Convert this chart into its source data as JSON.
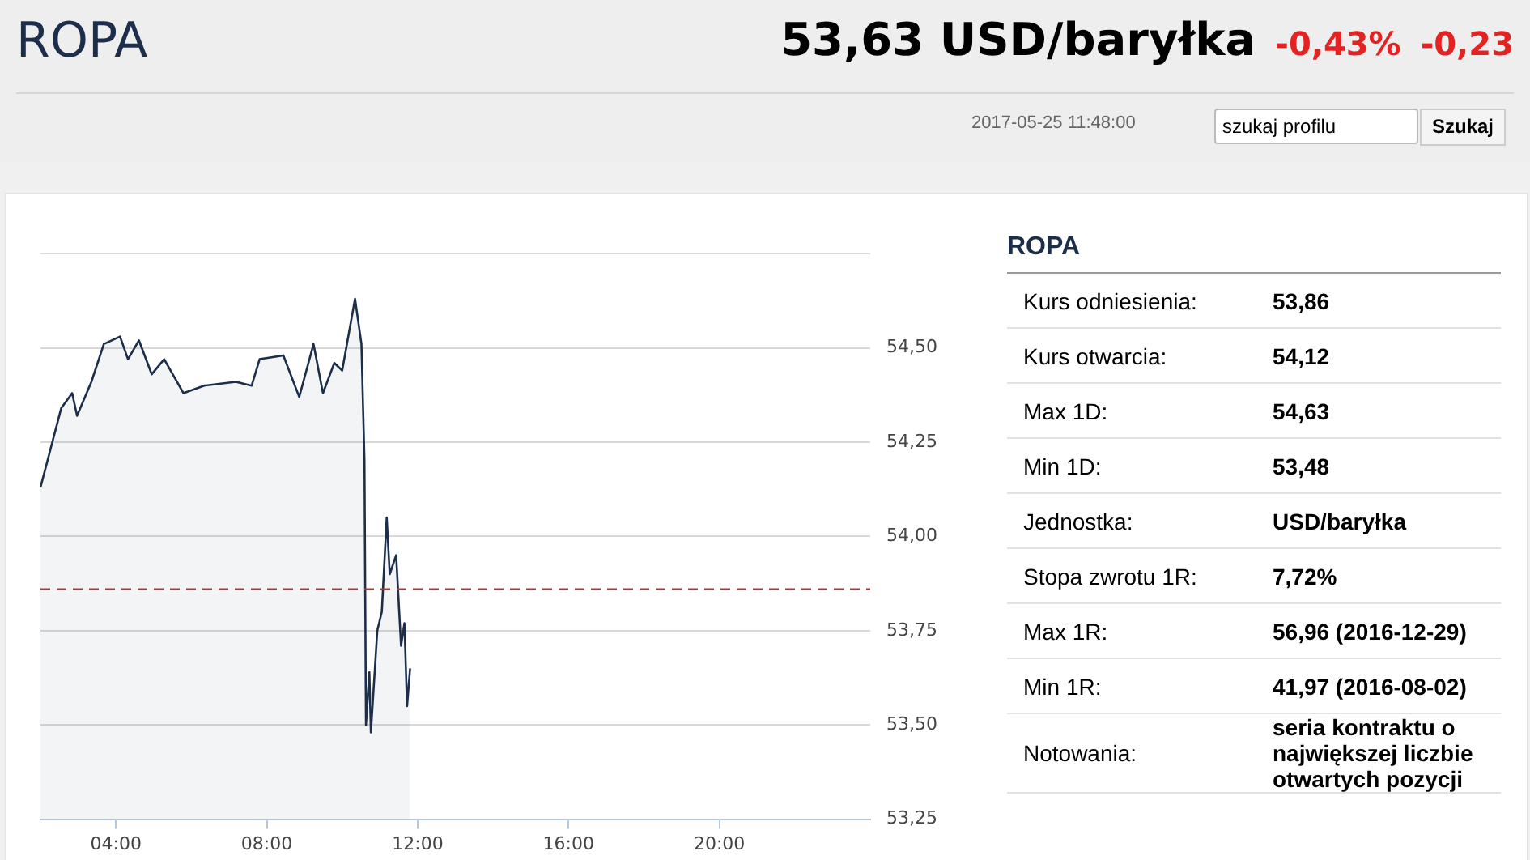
{
  "chart_data": [
    {
      "type": "area",
      "title": "ROPA",
      "subtitle": "53,63 USD/baryłka",
      "annotations": [
        "-0,43%",
        "-0,23",
        "2017-05-25 11:48:00",
        "szukaj profilu",
        "Szukaj"
      ],
      "x": [
        2.0,
        2.21,
        2.34,
        2.55,
        2.84,
        2.97,
        3.35,
        3.68,
        4.11,
        4.32,
        4.61,
        4.95,
        5.28,
        5.79,
        6.34,
        7.18,
        7.6,
        7.81,
        8.44,
        8.86,
        9.24,
        9.49,
        9.79,
        10.0,
        10.34,
        10.51,
        10.59,
        10.63,
        10.72,
        10.76,
        10.93,
        11.05,
        11.18,
        11.26,
        11.43,
        11.56,
        11.65,
        11.72,
        11.8
      ],
      "series": [
        {
          "color": "#1c2e4a",
          "values": [
            54.13,
            54.21,
            54.26,
            54.34,
            54.38,
            54.32,
            54.41,
            54.51,
            54.53,
            54.47,
            54.52,
            54.43,
            54.47,
            54.38,
            54.4,
            54.41,
            54.4,
            54.47,
            54.48,
            54.37,
            54.51,
            54.38,
            54.46,
            54.44,
            54.63,
            54.51,
            54.2,
            53.5,
            53.64,
            53.48,
            53.75,
            53.8,
            54.05,
            53.9,
            53.95,
            53.71,
            53.77,
            53.55,
            53.65
          ]
        }
      ],
      "xlim": [
        2,
        24
      ],
      "xticks": [
        {
          "value": 4,
          "label": "04:00"
        },
        {
          "value": 8,
          "label": "08:00"
        },
        {
          "value": 12,
          "label": "12:00"
        },
        {
          "value": 16,
          "label": "16:00"
        },
        {
          "value": 20,
          "label": "20:00"
        }
      ],
      "ylim": [
        53.25,
        54.75
      ],
      "yticks": [
        {
          "value": 53.25,
          "label": "53,25"
        },
        {
          "value": 53.5,
          "label": "53,50"
        },
        {
          "value": 53.75,
          "label": "53,75"
        },
        {
          "value": 54,
          "label": "54,00"
        },
        {
          "value": 54.25,
          "label": "54,25"
        },
        {
          "value": 54.5,
          "label": "54,50"
        },
        {
          "value": 54.75,
          "label": null
        }
      ],
      "grid": "y",
      "legend": false,
      "ref_lines": [
        {
          "axis": "y",
          "value": 53.86,
          "color": "#a33a3a",
          "line_style": "dashed"
        }
      ]
    },
    {
      "type": "other",
      "title": "ROPA",
      "annotations": [
        "Kurs odniesienia:",
        "53,86",
        "Kurs otwarcia:",
        "54,12",
        "Max 1D:",
        "54,63",
        "Min 1D:",
        "53,48",
        "Jednostka:",
        "USD/baryłka",
        "Stopa zwrotu 1R:",
        "7,72%",
        "Max 1R:",
        "56,96 (2016-12-29)",
        "Min 1R:",
        "41,97 (2016-08-02)",
        "Notowania:",
        "seria kontraktu o największej liczbie otwartych pozycji"
      ]
    }
  ]
}
